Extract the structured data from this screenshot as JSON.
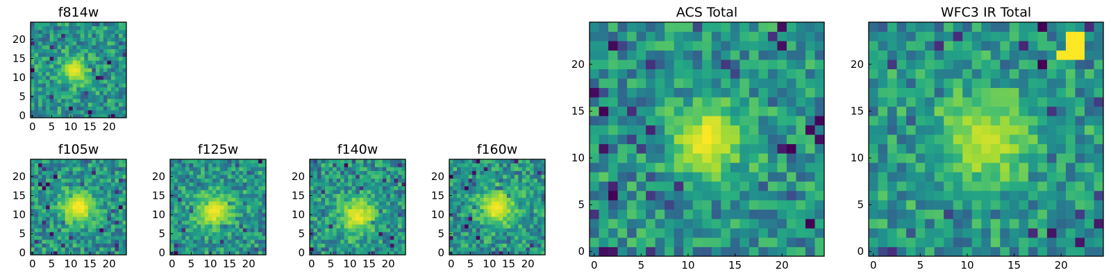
{
  "chart_data": [
    {
      "type": "heatmap",
      "id": "f814w",
      "title": "f814w",
      "grid_size": 25,
      "xlim": [
        0,
        24
      ],
      "ylim": [
        0,
        24
      ],
      "xticks": [
        0,
        5,
        10,
        15,
        20
      ],
      "yticks": [
        0,
        5,
        10,
        15,
        20
      ],
      "colormap": "viridis",
      "source_center": [
        11,
        12
      ],
      "source_peak": 0.95,
      "source_width": 2.6,
      "noise_seed": 11,
      "bright_spots": []
    },
    {
      "type": "heatmap",
      "id": "f105w",
      "title": "f105w",
      "grid_size": 25,
      "xlim": [
        0,
        24
      ],
      "ylim": [
        0,
        24
      ],
      "xticks": [
        0,
        5,
        10,
        15,
        20
      ],
      "yticks": [
        0,
        5,
        10,
        15,
        20
      ],
      "colormap": "viridis",
      "source_center": [
        12,
        12
      ],
      "source_peak": 1.0,
      "source_width": 3.2,
      "noise_seed": 23,
      "bright_spots": []
    },
    {
      "type": "heatmap",
      "id": "f125w",
      "title": "f125w",
      "grid_size": 25,
      "xlim": [
        0,
        24
      ],
      "ylim": [
        0,
        24
      ],
      "xticks": [
        0,
        5,
        10,
        15,
        20
      ],
      "yticks": [
        0,
        5,
        10,
        15,
        20
      ],
      "colormap": "viridis",
      "source_center": [
        11,
        11
      ],
      "source_peak": 0.95,
      "source_width": 3.4,
      "noise_seed": 37,
      "bright_spots": []
    },
    {
      "type": "heatmap",
      "id": "f140w",
      "title": "f140w",
      "grid_size": 25,
      "xlim": [
        0,
        24
      ],
      "ylim": [
        0,
        24
      ],
      "xticks": [
        0,
        5,
        10,
        15,
        20
      ],
      "yticks": [
        0,
        5,
        10,
        15,
        20
      ],
      "colormap": "viridis",
      "source_center": [
        12,
        10
      ],
      "source_peak": 0.95,
      "source_width": 3.4,
      "noise_seed": 41,
      "bright_spots": []
    },
    {
      "type": "heatmap",
      "id": "f160w",
      "title": "f160w",
      "grid_size": 25,
      "xlim": [
        0,
        24
      ],
      "ylim": [
        0,
        24
      ],
      "xticks": [
        0,
        5,
        10,
        15,
        20
      ],
      "yticks": [
        0,
        5,
        10,
        15,
        20
      ],
      "colormap": "viridis",
      "source_center": [
        12,
        12
      ],
      "source_peak": 1.0,
      "source_width": 3.3,
      "noise_seed": 53,
      "bright_spots": []
    },
    {
      "type": "heatmap",
      "id": "acs_total",
      "title": "ACS Total",
      "grid_size": 25,
      "xlim": [
        0,
        24
      ],
      "ylim": [
        0,
        24
      ],
      "xticks": [
        0,
        5,
        10,
        15,
        20
      ],
      "yticks": [
        0,
        5,
        10,
        15,
        20
      ],
      "colormap": "viridis",
      "source_center": [
        12,
        12
      ],
      "source_peak": 1.0,
      "source_width": 2.8,
      "noise_seed": 67,
      "bright_spots": []
    },
    {
      "type": "heatmap",
      "id": "wfc3_ir_total",
      "title": "WFC3 IR Total",
      "grid_size": 25,
      "xlim": [
        0,
        24
      ],
      "ylim": [
        0,
        24
      ],
      "xticks": [
        0,
        5,
        10,
        15,
        20
      ],
      "yticks": [
        0,
        5,
        10,
        15,
        20
      ],
      "colormap": "viridis",
      "source_center": [
        12,
        12
      ],
      "source_peak": 0.82,
      "source_width": 3.5,
      "noise_seed": 79,
      "bright_spots": [
        [
          20,
          21
        ],
        [
          21,
          21
        ],
        [
          22,
          21
        ],
        [
          21,
          22
        ],
        [
          22,
          22
        ],
        [
          21,
          23
        ],
        [
          22,
          23
        ]
      ]
    }
  ]
}
